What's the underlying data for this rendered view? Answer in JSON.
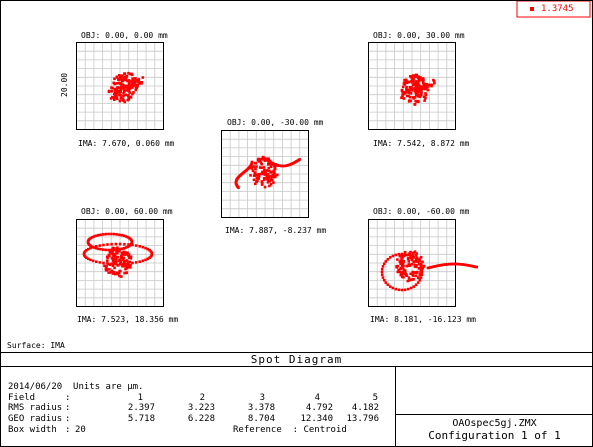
{
  "legend": {
    "label": "1.3745",
    "color": "#ff0000"
  },
  "spots": [
    {
      "id": "s1",
      "obj": "OBJ: 0.00, 0.00 mm",
      "ima": "IMA: 7.670, 0.060 mm",
      "scale_label": "20.00"
    },
    {
      "id": "s2",
      "obj": "OBJ: 0.00, 30.00 mm",
      "ima": "IMA: 7.542, 8.872 mm"
    },
    {
      "id": "s3",
      "obj": "OBJ: 0.00, -30.00 mm",
      "ima": "IMA: 7.887, -8.237 mm"
    },
    {
      "id": "s4",
      "obj": "OBJ: 0.00, 60.00 mm",
      "ima": "IMA: 7.523, 18.356 mm"
    },
    {
      "id": "s5",
      "obj": "OBJ: 0.00, -60.00 mm",
      "ima": "IMA: 8.181, -16.123 mm"
    }
  ],
  "surface": "Surface: IMA",
  "title": "Spot Diagram",
  "info": {
    "date_line": "2014/06/20  Units are µm.",
    "field_label": "Field",
    "rms_label": "RMS radius",
    "geo_label": "GEO radius",
    "box_label": "Box width",
    "sep": ":",
    "fields": [
      "1",
      "2",
      "3",
      "4",
      "5"
    ],
    "rms": [
      "2.397",
      "3.223",
      "3.378",
      "4.792",
      "4.182"
    ],
    "geo": [
      "5.718",
      "6.228",
      "8.704",
      "12.340",
      "13.796"
    ],
    "box_width": "20",
    "reference": "Reference  : Centroid"
  },
  "file": "OAOspec5gj.ZMX",
  "config": "Configuration 1 of 1",
  "colors": {
    "spot": "#ff0000",
    "grid": "#c8c8c8",
    "frame": "#000000"
  }
}
